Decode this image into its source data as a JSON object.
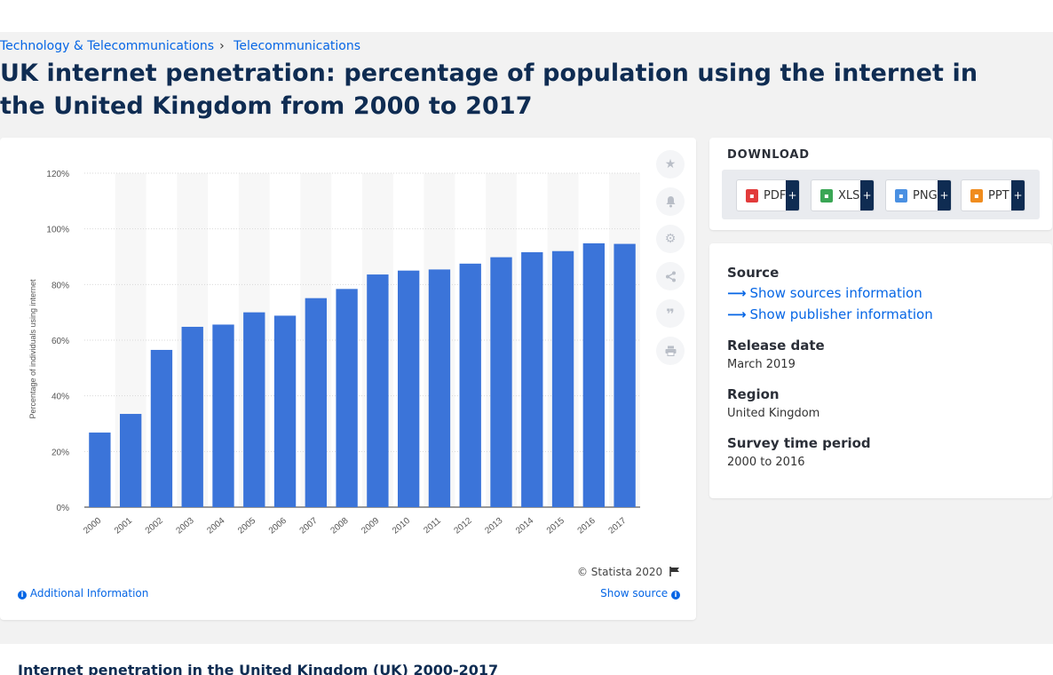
{
  "breadcrumb": {
    "items": [
      "Technology & Telecommunications",
      "Telecommunications"
    ],
    "separator": "›"
  },
  "page_title": "UK internet penetration: percentage of population using the internet in the United Kingdom from 2000 to 2017",
  "chart_data": {
    "type": "bar",
    "ylabel": "Percentage of individuals using internet",
    "xlabel": "",
    "ylim": [
      0,
      120
    ],
    "yticks": [
      "0%",
      "20%",
      "40%",
      "60%",
      "80%",
      "100%",
      "120%"
    ],
    "categories": [
      "2000",
      "2001",
      "2002",
      "2003",
      "2004",
      "2005",
      "2006",
      "2007",
      "2008",
      "2009",
      "2010",
      "2011",
      "2012",
      "2013",
      "2014",
      "2015",
      "2016",
      "2017"
    ],
    "values": [
      26.8,
      33.5,
      56.5,
      64.8,
      65.6,
      70.0,
      68.8,
      75.1,
      78.4,
      83.6,
      85.0,
      85.4,
      87.5,
      89.8,
      91.6,
      92.0,
      94.8,
      94.6
    ],
    "bar_color": "#3b74d9",
    "grid": true
  },
  "chart_footer": {
    "copyright": "© Statista 2020",
    "additional_info": "Additional Information",
    "show_source": "Show source"
  },
  "side_icons": [
    "star-icon",
    "bell-icon",
    "gear-icon",
    "share-icon",
    "quote-icon",
    "print-icon"
  ],
  "download": {
    "title": "DOWNLOAD",
    "formats": [
      {
        "label": "PDF",
        "color": "#e23b3b"
      },
      {
        "label": "XLS",
        "color": "#3aa655"
      },
      {
        "label": "PNG",
        "color": "#4a90e2"
      },
      {
        "label": "PPT",
        "color": "#f08c1e"
      }
    ],
    "plus": "+"
  },
  "meta": {
    "source_heading": "Source",
    "show_sources": "Show sources information",
    "show_publisher": "Show publisher information",
    "release_heading": "Release date",
    "release_value": "March 2019",
    "region_heading": "Region",
    "region_value": "United Kingdom",
    "survey_heading": "Survey time period",
    "survey_value": "2000 to 2016"
  },
  "bottom": {
    "title": "Internet penetration in the United Kingdom (UK) 2000-2017"
  }
}
